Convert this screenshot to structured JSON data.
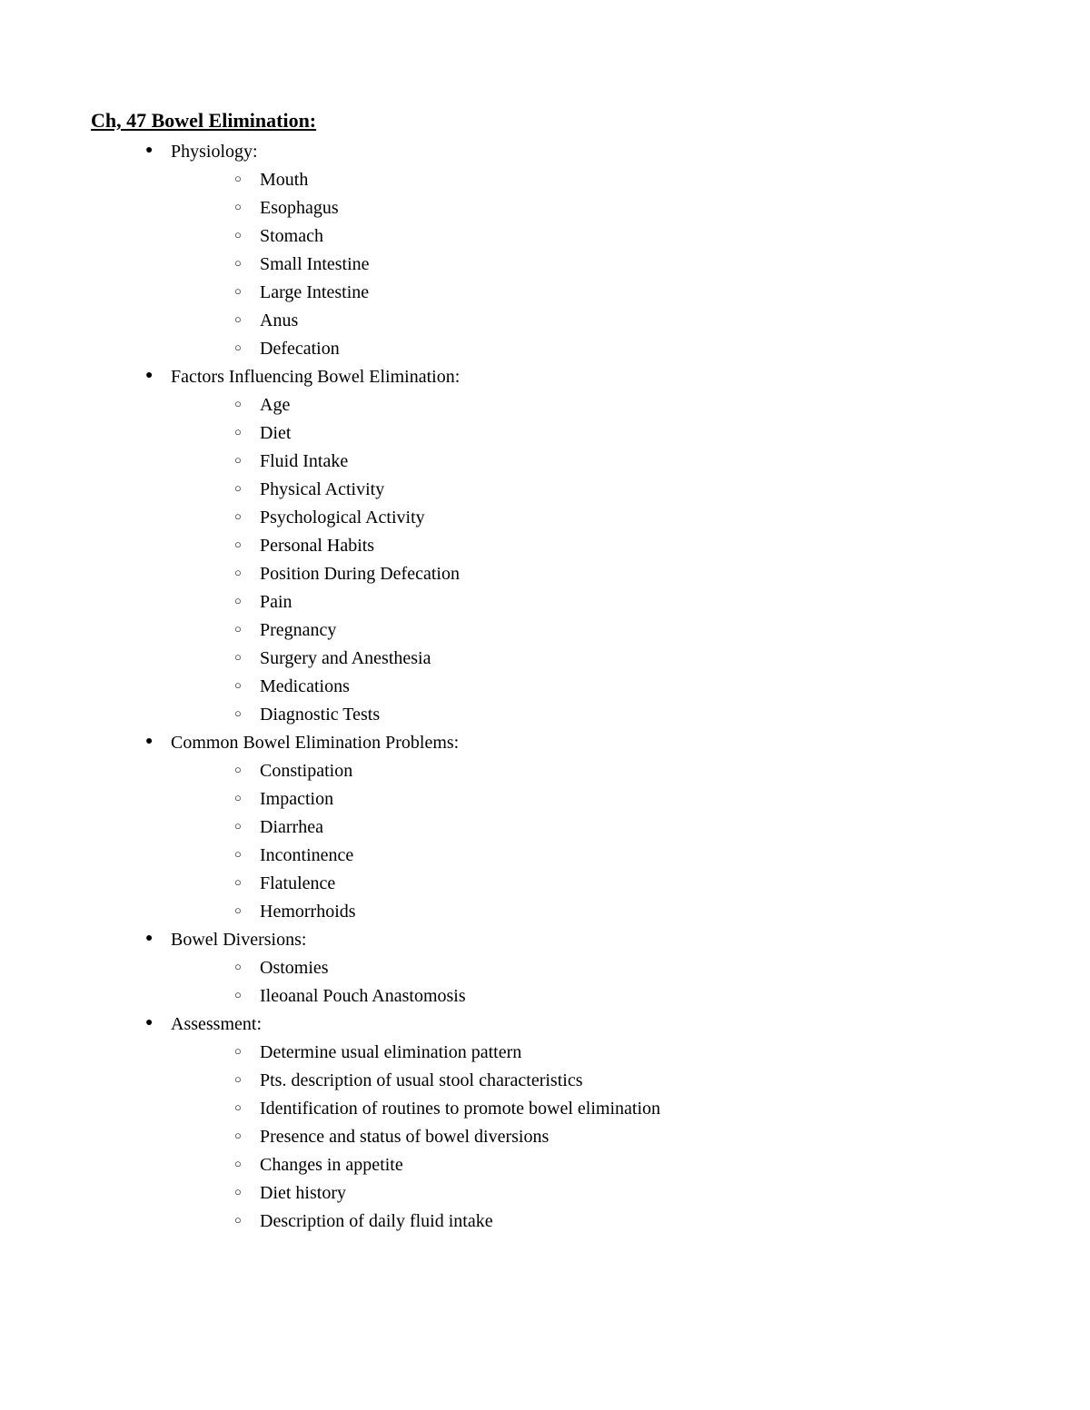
{
  "title": "Ch, 47 Bowel Elimination: ",
  "colors": {
    "background": "#ffffff",
    "text": "#000000"
  },
  "typography": {
    "font_family": "Times New Roman",
    "title_fontsize": 22,
    "body_fontsize": 20,
    "title_weight": "bold",
    "title_underline": true,
    "line_height": 1.55
  },
  "bullets": {
    "level1_marker": "●",
    "level2_marker": "○"
  },
  "sections": [
    {
      "label": "Physiology:",
      "items": [
        "Mouth",
        "Esophagus",
        "Stomach",
        "Small Intestine",
        "Large Intestine",
        "Anus",
        "Defecation"
      ]
    },
    {
      "label": "Factors Influencing Bowel Elimination:",
      "items": [
        "Age",
        "Diet",
        "Fluid Intake",
        "Physical Activity",
        "Psychological Activity",
        "Personal Habits",
        "Position During Defecation",
        "Pain",
        "Pregnancy",
        "Surgery and Anesthesia",
        "Medications",
        "Diagnostic Tests"
      ]
    },
    {
      "label": "Common Bowel Elimination Problems:",
      "items": [
        "Constipation",
        "Impaction",
        "Diarrhea",
        "Incontinence",
        "Flatulence",
        "Hemorrhoids"
      ]
    },
    {
      "label": "Bowel Diversions:",
      "items": [
        "Ostomies",
        "Ileoanal Pouch Anastomosis"
      ]
    },
    {
      "label": "Assessment:",
      "items": [
        "Determine usual elimination pattern",
        "Pts. description of usual stool characteristics",
        "Identification of routines to promote bowel elimination",
        "Presence and status of bowel diversions",
        "Changes in appetite",
        "Diet history",
        "Description of daily fluid intake"
      ]
    }
  ]
}
